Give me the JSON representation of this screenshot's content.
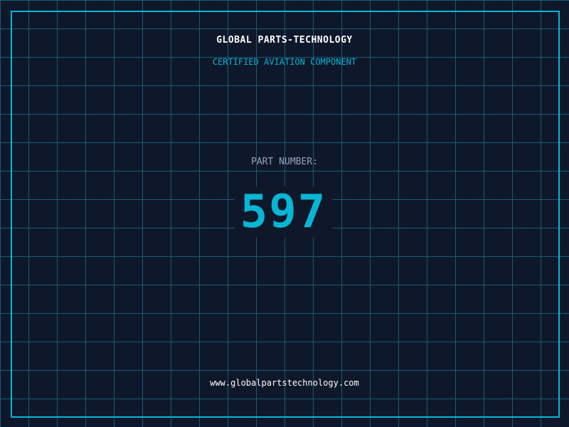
{
  "header": {
    "company": "GLOBAL PARTS-TECHNOLOGY",
    "subtitle": "CERTIFIED AVIATION COMPONENT"
  },
  "part": {
    "label": "PART NUMBER:",
    "number": "597"
  },
  "footer": {
    "url": "www.globalpartstechnology.com"
  },
  "colors": {
    "background": "#0f172a",
    "accent": "#06b6d4",
    "grid": "#155e75"
  }
}
